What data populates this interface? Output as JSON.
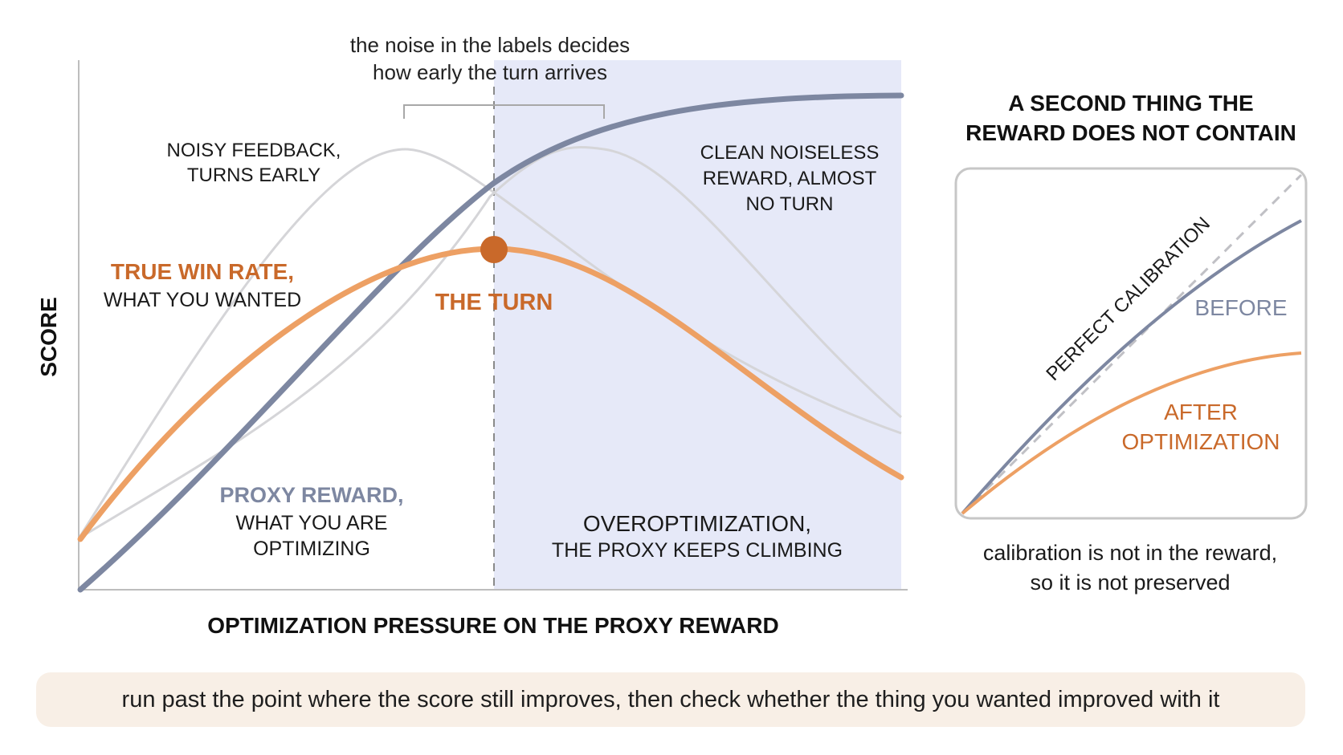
{
  "colors": {
    "proxy": "#7d87a1",
    "true": "#eda064",
    "accent_dark": "#c9692a",
    "noisy": "#d5d5d8",
    "shade": "#e6e9f8",
    "footer_bg": "#f8efe6"
  },
  "main_chart": {
    "ylabel": "SCORE",
    "xlabel": "OPTIMIZATION PRESSURE ON THE PROXY REWARD",
    "bracket_note": [
      "the noise in the labels decides",
      "how early the turn arrives"
    ],
    "noisy_label": [
      "NOISY FEEDBACK,",
      "TURNS EARLY"
    ],
    "clean_label": [
      "CLEAN NOISELESS",
      "REWARD, ALMOST",
      "NO TURN"
    ],
    "true_label": [
      "TRUE WIN RATE,",
      "WHAT YOU WANTED"
    ],
    "turn_label": "THE TURN",
    "proxy_label": [
      "PROXY REWARD,",
      "WHAT YOU ARE",
      "OPTIMIZING"
    ],
    "overopt_label": [
      "OVEROPTIMIZATION,",
      "THE PROXY KEEPS CLIMBING"
    ]
  },
  "side_chart": {
    "title": [
      "A SECOND THING THE",
      "REWARD DOES NOT CONTAIN"
    ],
    "diagonal_label": "PERFECT CALIBRATION",
    "before_label": "BEFORE",
    "after_label": [
      "AFTER",
      "OPTIMIZATION"
    ],
    "caption": [
      "calibration is not in the reward,",
      "so it is not preserved"
    ]
  },
  "footer": {
    "text": "run past the point where the score still improves, then check whether the thing you wanted improved with it"
  }
}
